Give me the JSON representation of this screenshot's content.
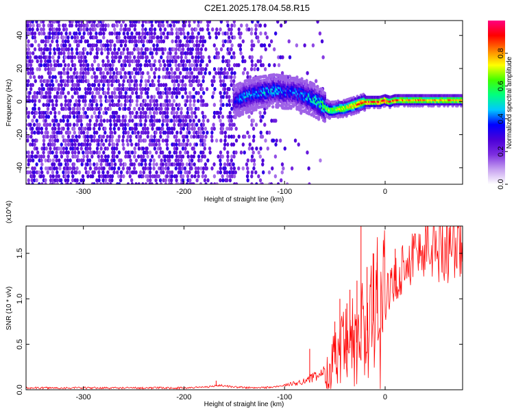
{
  "window": {
    "title": "C2E1.2025.178.04.58.R15"
  },
  "chart_data": [
    {
      "type": "heatmap",
      "title": "C2E1.2025.178.04.58.R15",
      "xlabel": "Height of straight line (km)",
      "ylabel": "Frequency (Hz)",
      "xlim": [
        -357,
        77
      ],
      "ylim": [
        -50,
        49
      ],
      "xticks": [
        -300,
        -200,
        -100,
        0
      ],
      "xtick_labels": [
        "-300",
        "-200",
        "-100",
        "0"
      ],
      "yticks": [
        -40,
        -20,
        0,
        20,
        40
      ],
      "ytick_labels": [
        "-40",
        "-20",
        "0",
        "20",
        "40"
      ],
      "colorbar": {
        "label": "Normalized spectral amplitude",
        "range": [
          0,
          1
        ],
        "ticks": [
          0,
          0.2,
          0.4,
          0.6,
          0.8
        ],
        "tick_labels": [
          "0.0",
          "0.2",
          "0.4",
          "0.6",
          "0.8"
        ],
        "colors": [
          "#ffffff",
          "#c6a0f0",
          "#7d2ee0",
          "#4b00d8",
          "#0000ff",
          "#00c8ff",
          "#00ff80",
          "#40ff00",
          "#ffff00",
          "#ff8000",
          "#ff0000",
          "#ff0080"
        ]
      },
      "signal_trace": {
        "x": [
          -150,
          -140,
          -130,
          -120,
          -110,
          -100,
          -90,
          -80,
          -70,
          -60,
          -55,
          -50,
          -45,
          -40,
          -35,
          -30,
          -25,
          -20,
          -15,
          -10,
          -5,
          0,
          5,
          10,
          20,
          40,
          77
        ],
        "y": [
          0,
          3,
          5,
          6,
          7,
          6,
          6,
          4,
          1,
          -3,
          -5,
          -5,
          -4,
          -4,
          -3,
          -2,
          -1,
          0,
          0,
          0,
          0,
          1,
          0,
          1,
          1,
          1,
          1
        ],
        "peak_amplitude": [
          0.35,
          0.5,
          0.45,
          0.5,
          0.5,
          0.45,
          0.45,
          0.5,
          0.6,
          0.65,
          0.7,
          0.7,
          0.75,
          0.8,
          0.8,
          0.85,
          0.9,
          0.9,
          0.95,
          0.95,
          0.95,
          1.0,
          0.9,
          0.9,
          0.85,
          0.85,
          0.85
        ]
      },
      "grid": false
    },
    {
      "type": "line",
      "xlabel": "Height of straight line (km)",
      "ylabel": "SNR (10 * v/v)",
      "y_multiplier": "(x10^4)",
      "xlim": [
        -357,
        77
      ],
      "ylim": [
        0,
        1.8
      ],
      "xticks": [
        -300,
        -200,
        -100,
        0
      ],
      "xtick_labels": [
        "-300",
        "-200",
        "-100",
        "0"
      ],
      "yticks": [
        0,
        0.5,
        1.0,
        1.5
      ],
      "ytick_labels": [
        "0.0",
        "0.5",
        "1.0",
        "1.5"
      ],
      "series": [
        {
          "color": "#ff0000",
          "x": [
            -357,
            -300,
            -250,
            -200,
            -180,
            -170,
            -165,
            -150,
            -130,
            -110,
            -100,
            -90,
            -80,
            -70,
            -60,
            -55,
            -50,
            -45,
            -40,
            -35,
            -30,
            -25,
            -20,
            -15,
            -10,
            -5,
            0,
            5,
            10,
            15,
            20,
            30,
            40,
            50,
            60,
            70,
            77
          ],
          "y": [
            0.02,
            0.02,
            0.02,
            0.02,
            0.03,
            0.04,
            0.05,
            0.03,
            0.02,
            0.03,
            0.05,
            0.07,
            0.1,
            0.14,
            0.2,
            0.25,
            0.3,
            0.38,
            0.42,
            0.46,
            0.5,
            0.55,
            0.62,
            0.7,
            0.8,
            0.9,
            1.0,
            1.08,
            1.2,
            1.3,
            1.4,
            1.5,
            1.55,
            1.57,
            1.58,
            1.6,
            1.59
          ]
        }
      ],
      "spikes": [
        {
          "x": -168,
          "y": 0.1
        },
        {
          "x": -75,
          "y": 0.45
        },
        {
          "x": -50,
          "y": 0.75
        },
        {
          "x": -45,
          "y": 1.0
        },
        {
          "x": -38,
          "y": 0.95
        },
        {
          "x": -35,
          "y": 1.1
        },
        {
          "x": -28,
          "y": 1.2
        },
        {
          "x": -24,
          "y": 1.8
        },
        {
          "x": -18,
          "y": 1.35
        },
        {
          "x": -12,
          "y": 1.5
        },
        {
          "x": -8,
          "y": 1.4
        },
        {
          "x": 10,
          "y": 1.55
        }
      ],
      "grid": false
    }
  ]
}
